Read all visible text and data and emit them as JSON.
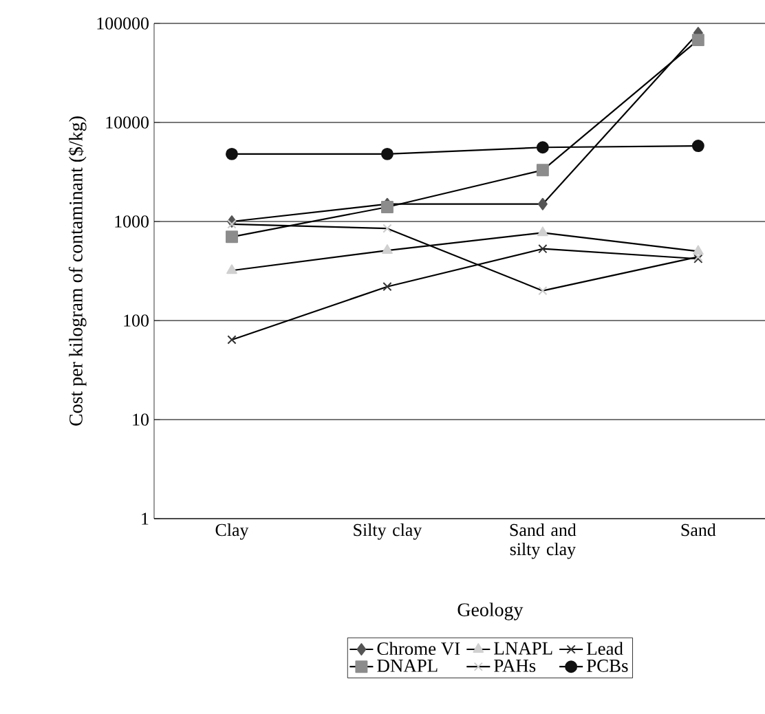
{
  "chart_data": {
    "type": "line",
    "xlabel": "Geology",
    "ylabel": "Cost per kilogram of contaminant ($/kg)",
    "categories": [
      "Clay",
      "Silty clay",
      "Sand and silty clay",
      "Sand"
    ],
    "log": "y",
    "ylim": [
      1,
      100000
    ],
    "yticks": [
      1,
      10,
      100,
      1000,
      10000,
      100000
    ],
    "grid": "y",
    "legend": "bottom",
    "line_style": "solid",
    "series": [
      {
        "name": "Chrome VI",
        "color": "#555555",
        "marker": "diamond",
        "values": [
          1000,
          1500,
          1500,
          80000
        ]
      },
      {
        "name": "LNAPL",
        "color": "#d0d0d0",
        "marker": "triangle",
        "values": [
          320,
          510,
          770,
          500
        ]
      },
      {
        "name": "Lead",
        "color": "#333333",
        "marker": "cross",
        "values": [
          64,
          220,
          530,
          420
        ]
      },
      {
        "name": "DNAPL",
        "color": "#8c8c8c",
        "marker": "square",
        "values": [
          700,
          1400,
          3300,
          68000
        ]
      },
      {
        "name": "PAHs",
        "color": "#cccccc",
        "marker": "cross",
        "values": [
          940,
          850,
          200,
          440
        ]
      },
      {
        "name": "PCBs",
        "color": "#111111",
        "marker": "circle",
        "values": [
          4800,
          4800,
          5600,
          5800
        ]
      }
    ]
  }
}
